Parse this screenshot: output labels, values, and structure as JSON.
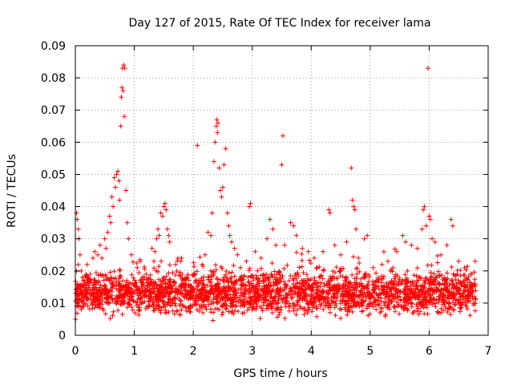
{
  "chart_data": {
    "type": "scatter",
    "title": "Day 127 of 2015, Rate Of TEC Index for receiver lama",
    "xlabel": "GPS time / hours",
    "ylabel": "ROTI / TECUs",
    "xlim": [
      0,
      7
    ],
    "ylim": [
      0,
      0.09
    ],
    "xticks": [
      "0",
      "1",
      "2",
      "3",
      "4",
      "5",
      "6",
      "7"
    ],
    "yticks": [
      "0",
      "0.01",
      "0.02",
      "0.03",
      "0.04",
      "0.05",
      "0.06",
      "0.07",
      "0.08",
      "0.09"
    ],
    "grid": true,
    "marker": "+",
    "color": "#ff0000",
    "series": [
      {
        "name": "ROTI",
        "points": [
          [
            0.02,
            0.038
          ],
          [
            0.03,
            0.036
          ],
          [
            0.05,
            0.033
          ],
          [
            0.06,
            0.03
          ],
          [
            0.08,
            0.025
          ],
          [
            0.1,
            0.02
          ],
          [
            0.12,
            0.018
          ],
          [
            0.15,
            0.016
          ],
          [
            0.2,
            0.022
          ],
          [
            0.25,
            0.019
          ],
          [
            0.3,
            0.024
          ],
          [
            0.33,
            0.026
          ],
          [
            0.38,
            0.025
          ],
          [
            0.42,
            0.028
          ],
          [
            0.45,
            0.024
          ],
          [
            0.5,
            0.03
          ],
          [
            0.52,
            0.027
          ],
          [
            0.55,
            0.032
          ],
          [
            0.58,
            0.037
          ],
          [
            0.6,
            0.035
          ],
          [
            0.62,
            0.043
          ],
          [
            0.64,
            0.04
          ],
          [
            0.66,
            0.049
          ],
          [
            0.68,
            0.046
          ],
          [
            0.7,
            0.05
          ],
          [
            0.72,
            0.051
          ],
          [
            0.74,
            0.048
          ],
          [
            0.75,
            0.042
          ],
          [
            0.77,
            0.065
          ],
          [
            0.78,
            0.074
          ],
          [
            0.79,
            0.077
          ],
          [
            0.8,
            0.083
          ],
          [
            0.82,
            0.084
          ],
          [
            0.84,
            0.083
          ],
          [
            0.81,
            0.076
          ],
          [
            0.83,
            0.068
          ],
          [
            0.86,
            0.045
          ],
          [
            0.88,
            0.035
          ],
          [
            0.9,
            0.03
          ],
          [
            0.95,
            0.025
          ],
          [
            1.05,
            0.021
          ],
          [
            1.1,
            0.023
          ],
          [
            1.2,
            0.019
          ],
          [
            1.3,
            0.027
          ],
          [
            1.35,
            0.026
          ],
          [
            1.38,
            0.03
          ],
          [
            1.4,
            0.033
          ],
          [
            1.42,
            0.031
          ],
          [
            1.45,
            0.038
          ],
          [
            1.48,
            0.037
          ],
          [
            1.5,
            0.04
          ],
          [
            1.52,
            0.041
          ],
          [
            1.54,
            0.039
          ],
          [
            1.56,
            0.033
          ],
          [
            1.58,
            0.031
          ],
          [
            1.6,
            0.029
          ],
          [
            1.7,
            0.022
          ],
          [
            1.8,
            0.024
          ],
          [
            1.9,
            0.018
          ],
          [
            2.0,
            0.019
          ],
          [
            2.07,
            0.059
          ],
          [
            2.15,
            0.022
          ],
          [
            2.2,
            0.025
          ],
          [
            2.25,
            0.032
          ],
          [
            2.3,
            0.031
          ],
          [
            2.32,
            0.038
          ],
          [
            2.35,
            0.054
          ],
          [
            2.37,
            0.06
          ],
          [
            2.39,
            0.065
          ],
          [
            2.4,
            0.067
          ],
          [
            2.42,
            0.066
          ],
          [
            2.41,
            0.063
          ],
          [
            2.44,
            0.052
          ],
          [
            2.46,
            0.045
          ],
          [
            2.48,
            0.043
          ],
          [
            2.5,
            0.046
          ],
          [
            2.52,
            0.053
          ],
          [
            2.55,
            0.058
          ],
          [
            2.58,
            0.038
          ],
          [
            2.6,
            0.034
          ],
          [
            2.62,
            0.031
          ],
          [
            2.65,
            0.029
          ],
          [
            2.7,
            0.027
          ],
          [
            2.75,
            0.025
          ],
          [
            2.8,
            0.021
          ],
          [
            2.9,
            0.023
          ],
          [
            2.95,
            0.04
          ],
          [
            2.97,
            0.041
          ],
          [
            3.05,
            0.026
          ],
          [
            3.15,
            0.024
          ],
          [
            3.25,
            0.03
          ],
          [
            3.3,
            0.036
          ],
          [
            3.35,
            0.033
          ],
          [
            3.4,
            0.028
          ],
          [
            3.5,
            0.053
          ],
          [
            3.52,
            0.062
          ],
          [
            3.55,
            0.028
          ],
          [
            3.65,
            0.035
          ],
          [
            3.7,
            0.034
          ],
          [
            3.75,
            0.031
          ],
          [
            3.85,
            0.027
          ],
          [
            3.95,
            0.026
          ],
          [
            4.05,
            0.024
          ],
          [
            4.1,
            0.021
          ],
          [
            4.2,
            0.026
          ],
          [
            4.3,
            0.039
          ],
          [
            4.32,
            0.038
          ],
          [
            4.4,
            0.028
          ],
          [
            4.5,
            0.025
          ],
          [
            4.6,
            0.029
          ],
          [
            4.68,
            0.052
          ],
          [
            4.7,
            0.042
          ],
          [
            4.72,
            0.04
          ],
          [
            4.74,
            0.039
          ],
          [
            4.76,
            0.033
          ],
          [
            4.8,
            0.024
          ],
          [
            4.9,
            0.03
          ],
          [
            4.95,
            0.031
          ],
          [
            5.05,
            0.021
          ],
          [
            5.2,
            0.022
          ],
          [
            5.3,
            0.023
          ],
          [
            5.45,
            0.026
          ],
          [
            5.55,
            0.031
          ],
          [
            5.6,
            0.029
          ],
          [
            5.7,
            0.028
          ],
          [
            5.8,
            0.027
          ],
          [
            5.88,
            0.033
          ],
          [
            5.9,
            0.039
          ],
          [
            5.92,
            0.04
          ],
          [
            5.95,
            0.034
          ],
          [
            5.98,
            0.083
          ],
          [
            6.0,
            0.037
          ],
          [
            6.02,
            0.036
          ],
          [
            6.05,
            0.03
          ],
          [
            6.1,
            0.029
          ],
          [
            6.2,
            0.025
          ],
          [
            6.3,
            0.028
          ],
          [
            6.37,
            0.036
          ],
          [
            6.4,
            0.034
          ],
          [
            6.5,
            0.023
          ],
          [
            6.6,
            0.021
          ],
          [
            6.7,
            0.019
          ],
          [
            6.78,
            0.023
          ]
        ],
        "band": {
          "x_range": [
            0.0,
            6.8
          ],
          "base_min": 0.004,
          "base_max": 0.022,
          "median": 0.011,
          "count": 2600
        }
      }
    ]
  }
}
